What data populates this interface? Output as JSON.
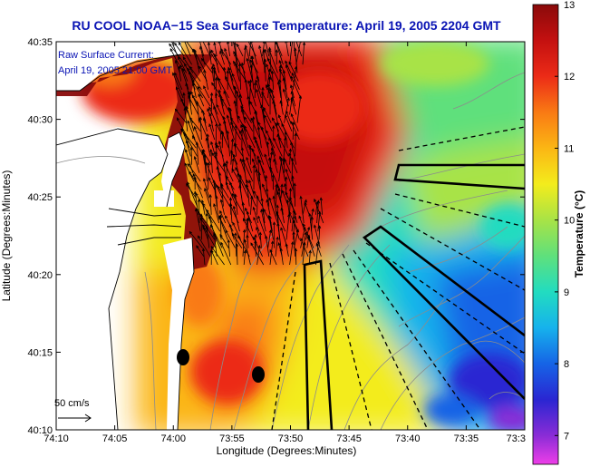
{
  "title": "RU COOL  NOAA−15  Sea Surface Temperature:  April 19, 2005 2204 GMT",
  "annotation": {
    "line1": "Raw Surface Current:",
    "line2": "April 19, 2005 21:00 GMT"
  },
  "scale_label": "50 cm/s",
  "colors": {
    "title": "#0a14b4",
    "land": "#ffffff",
    "coast_line": "#000000",
    "bathymetry": "#8c8c8c",
    "transect": "#000000"
  },
  "chart_data": {
    "type": "heatmap",
    "title": "RU COOL  NOAA−15  Sea Surface Temperature:  April 19, 2005 2204 GMT",
    "xlabel": "Longitude (Degrees:Minutes)",
    "ylabel": "Latitude (Degrees:Minutes)",
    "x_ticks": [
      "74:10",
      "74:05",
      "74:00",
      "73:55",
      "73:50",
      "73:45",
      "73:40",
      "73:35",
      "73:3"
    ],
    "y_ticks": [
      "40:35",
      "40:30",
      "40:25",
      "40:20",
      "40:15",
      "40:10"
    ],
    "colorbar": {
      "label": "Temperature (°C)",
      "ticks": [
        "13",
        "12",
        "11",
        "10",
        "9",
        "8",
        "7"
      ],
      "range": [
        6.6,
        13
      ],
      "stops": [
        {
          "value": 13.0,
          "color": "#8a0a0a"
        },
        {
          "value": 12.5,
          "color": "#c41010"
        },
        {
          "value": 12.0,
          "color": "#ec2b17"
        },
        {
          "value": 11.5,
          "color": "#f97a14"
        },
        {
          "value": 11.0,
          "color": "#fbb614"
        },
        {
          "value": 10.5,
          "color": "#f3ec1c"
        },
        {
          "value": 10.0,
          "color": "#a8e346"
        },
        {
          "value": 9.5,
          "color": "#5fe07c"
        },
        {
          "value": 9.0,
          "color": "#22dcc0"
        },
        {
          "value": 8.5,
          "color": "#16b2ec"
        },
        {
          "value": 8.0,
          "color": "#1664e6"
        },
        {
          "value": 7.5,
          "color": "#2a26d2"
        },
        {
          "value": 7.0,
          "color": "#8a2cd6"
        },
        {
          "value": 6.6,
          "color": "#ee3ee8"
        }
      ]
    },
    "layers": [
      "sea surface temperature",
      "raw surface current vectors",
      "bathymetry contours",
      "sampling transects",
      "stations"
    ]
  }
}
